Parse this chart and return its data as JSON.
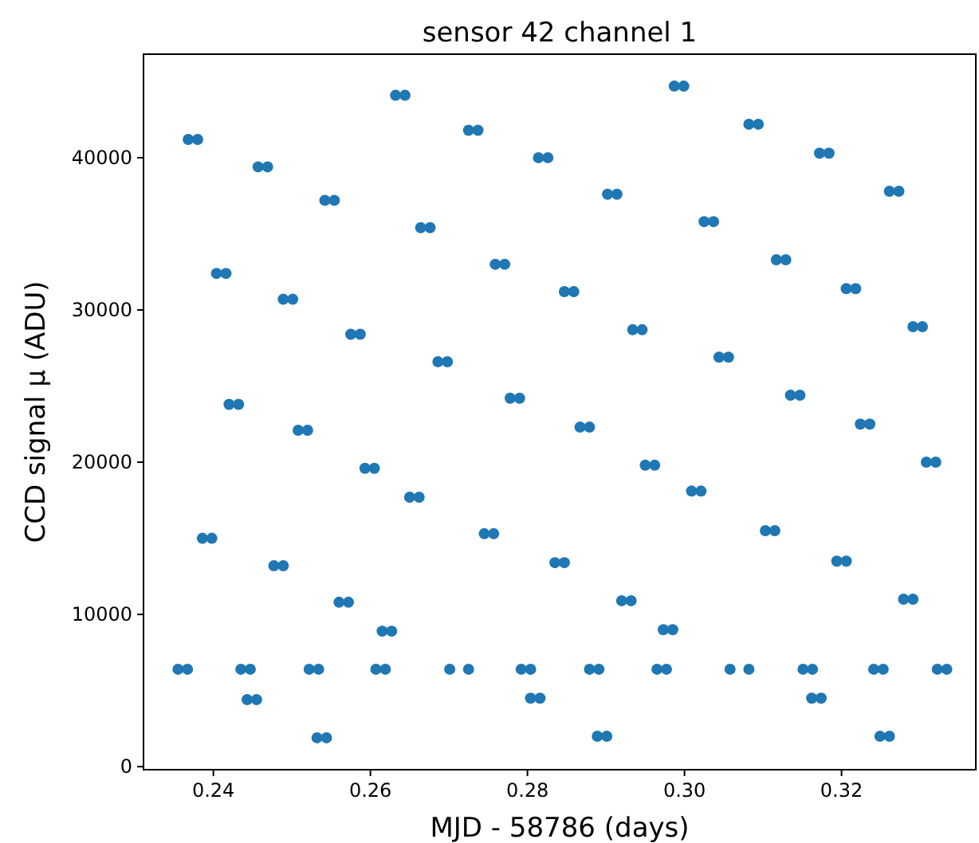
{
  "chart_data": {
    "type": "scatter",
    "title": "sensor 42 channel 1",
    "xlabel": "MJD - 58786 (days)",
    "ylabel": "CCD signal μ (ADU)",
    "xlim": [
      0.2311,
      0.3371
    ],
    "xticks": [
      0.24,
      0.26,
      0.28,
      {
        "value": 0.3,
        "label": "0.30"
      },
      0.32
    ],
    "ylim": [
      -200,
      46800
    ],
    "yticks": [
      0,
      10000,
      20000,
      30000,
      40000
    ],
    "grid": false,
    "marker": "circle",
    "series": [
      {
        "color": "#1f77b4",
        "x": [
          0.2355,
          0.2367,
          0.2368,
          0.238,
          0.2386,
          0.2398,
          0.2404,
          0.2416,
          0.242,
          0.2432,
          0.2435,
          0.2447,
          0.2443,
          0.2455,
          0.2457,
          0.2469,
          0.2477,
          0.2489,
          0.2489,
          0.2501,
          0.2508,
          0.252,
          0.2522,
          0.2534,
          0.2532,
          0.2544,
          0.2542,
          0.2554,
          0.256,
          0.2572,
          0.2575,
          0.2587,
          0.2593,
          0.2605,
          0.2607,
          0.2619,
          0.2615,
          0.2627,
          0.2632,
          0.2644,
          0.265,
          0.2662,
          0.2664,
          0.2676,
          0.2686,
          0.2698,
          0.2701,
          0.2725,
          0.2725,
          0.2737,
          0.2745,
          0.2757,
          0.2759,
          0.2771,
          0.2778,
          0.279,
          0.2792,
          0.2804,
          0.2804,
          0.2816,
          0.2814,
          0.2826,
          0.2835,
          0.2847,
          0.2847,
          0.2859,
          0.2867,
          0.2879,
          0.2879,
          0.2891,
          0.2889,
          0.2901,
          0.2902,
          0.2914,
          0.292,
          0.2932,
          0.2934,
          0.2946,
          0.295,
          0.2962,
          0.2965,
          0.2977,
          0.2973,
          0.2985,
          0.2987,
          0.2999,
          0.3009,
          0.3021,
          0.3025,
          0.3037,
          0.3044,
          0.3056,
          0.3058,
          0.3082,
          0.3082,
          0.3094,
          0.3103,
          0.3115,
          0.3117,
          0.3129,
          0.3135,
          0.3147,
          0.3151,
          0.3163,
          0.3162,
          0.3174,
          0.3172,
          0.3184,
          0.3194,
          0.3206,
          0.3206,
          0.3218,
          0.3224,
          0.3236,
          0.3241,
          0.3253,
          0.3249,
          0.3261,
          0.3261,
          0.3273,
          0.3279,
          0.3291,
          0.3291,
          0.3303,
          0.3308,
          0.332,
          0.3322,
          0.3334
        ],
        "values": [
          6400,
          6400,
          41200,
          41200,
          15000,
          15000,
          32400,
          32400,
          23800,
          23800,
          6400,
          6400,
          4400,
          4400,
          39400,
          39400,
          13200,
          13200,
          30700,
          30700,
          22100,
          22100,
          6400,
          6400,
          1900,
          1900,
          37200,
          37200,
          10800,
          10800,
          28400,
          28400,
          19600,
          19600,
          6400,
          6400,
          8900,
          8900,
          44100,
          44100,
          17700,
          17700,
          35400,
          35400,
          26600,
          26600,
          6400,
          6400,
          41800,
          41800,
          15300,
          15300,
          33000,
          33000,
          24200,
          24200,
          6400,
          6400,
          4500,
          4500,
          40000,
          40000,
          13400,
          13400,
          31200,
          31200,
          22300,
          22300,
          6400,
          6400,
          2000,
          2000,
          37600,
          37600,
          10900,
          10900,
          28700,
          28700,
          19800,
          19800,
          6400,
          6400,
          9000,
          9000,
          44700,
          44700,
          18100,
          18100,
          35800,
          35800,
          26900,
          26900,
          6400,
          6400,
          42200,
          42200,
          15500,
          15500,
          33300,
          33300,
          24400,
          24400,
          6400,
          6400,
          4500,
          4500,
          40300,
          40300,
          13500,
          13500,
          31400,
          31400,
          22500,
          22500,
          6400,
          6400,
          2000,
          2000,
          37800,
          37800,
          11000,
          11000,
          28900,
          28900,
          20000,
          20000,
          6400,
          6400
        ]
      }
    ]
  }
}
